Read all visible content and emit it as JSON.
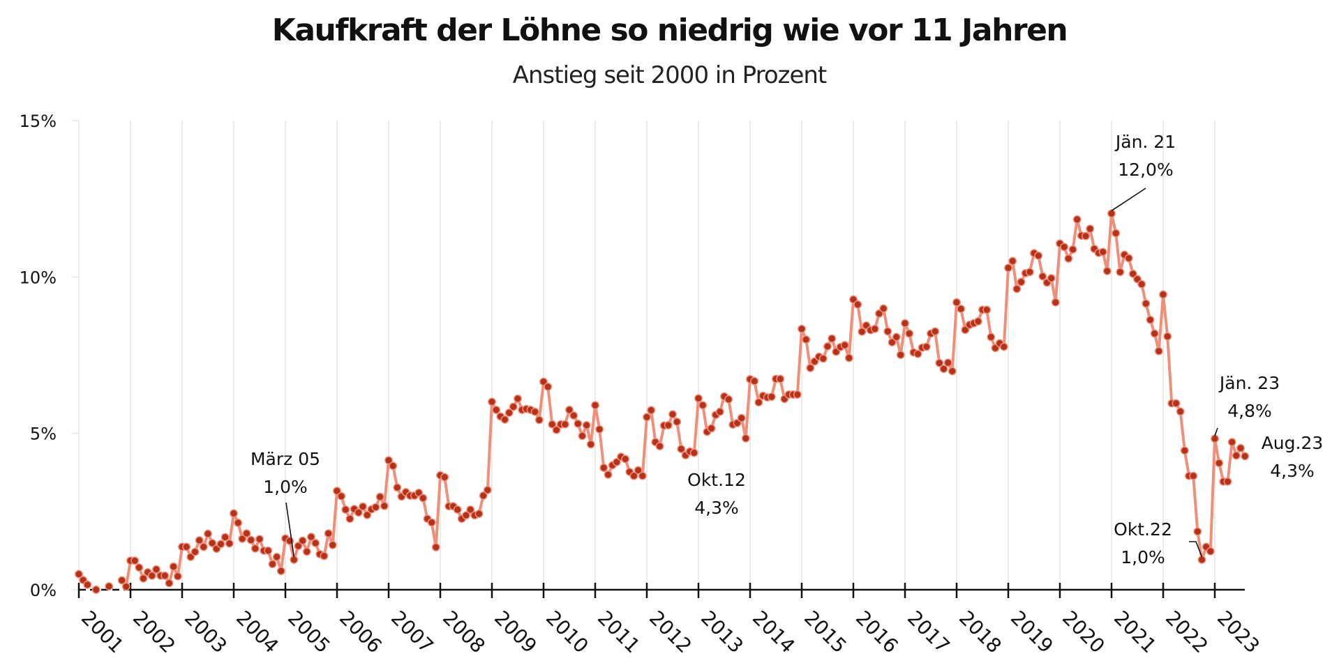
{
  "chart_data": {
    "type": "line",
    "title": "Kaufkraft der Löhne so niedrig wie vor 11 Jahren",
    "subtitle": "Anstieg seit 2000 in Prozent",
    "xlabel": "",
    "ylabel": "",
    "ylim": [
      0,
      15
    ],
    "yticks": [
      0,
      5,
      10,
      15
    ],
    "ytick_labels": [
      "0%",
      "5%",
      "10%",
      "15%"
    ],
    "xticks": [
      "2001",
      "2002",
      "2003",
      "2004",
      "2005",
      "2006",
      "2007",
      "2008",
      "2009",
      "2010",
      "2011",
      "2012",
      "2013",
      "2014",
      "2015",
      "2016",
      "2017",
      "2018",
      "2019",
      "2020",
      "2021",
      "2022",
      "2023"
    ],
    "x_start": "2001-01",
    "x_end": "2023-08",
    "frequency": "monthly",
    "grid": "vertical",
    "colors": {
      "line": "#ef8f7a",
      "marker": "#b5321a",
      "grid": "#ecebe6",
      "axis": "#111111"
    },
    "series": [
      {
        "name": "Kaufkraft der Löhne",
        "values": [
          0.5,
          0.31,
          0.16,
          null,
          0.0,
          null,
          null,
          0.11,
          null,
          null,
          0.3,
          0.1,
          0.93,
          0.93,
          0.71,
          0.36,
          0.56,
          0.45,
          0.65,
          0.45,
          0.45,
          0.21,
          0.74,
          0.43,
          1.37,
          1.37,
          1.05,
          1.21,
          1.58,
          1.37,
          1.79,
          1.49,
          1.31,
          1.46,
          1.68,
          1.48,
          2.44,
          2.14,
          1.63,
          1.8,
          1.59,
          1.32,
          1.62,
          1.25,
          1.25,
          0.82,
          1.05,
          0.6,
          1.64,
          1.56,
          0.96,
          1.4,
          1.57,
          1.22,
          1.69,
          1.49,
          1.14,
          1.08,
          1.8,
          1.43,
          3.16,
          2.99,
          2.56,
          2.27,
          2.58,
          2.47,
          2.66,
          2.39,
          2.57,
          2.64,
          2.97,
          2.68,
          4.14,
          3.96,
          3.27,
          2.98,
          3.12,
          3.01,
          3.01,
          3.1,
          2.93,
          2.27,
          2.15,
          1.36,
          3.66,
          3.6,
          2.67,
          2.67,
          2.56,
          2.27,
          2.38,
          2.56,
          2.38,
          2.43,
          3.01,
          3.19,
          6.01,
          5.75,
          5.54,
          5.44,
          5.66,
          5.85,
          6.11,
          5.75,
          5.78,
          5.75,
          5.69,
          5.43,
          6.65,
          6.49,
          5.29,
          5.11,
          5.29,
          5.29,
          5.75,
          5.57,
          5.31,
          4.92,
          5.26,
          4.65,
          5.9,
          5.13,
          3.9,
          3.68,
          3.98,
          4.08,
          4.25,
          4.18,
          3.77,
          3.64,
          3.82,
          3.64,
          5.52,
          5.74,
          4.72,
          4.59,
          5.25,
          5.26,
          5.61,
          5.37,
          4.5,
          4.3,
          4.42,
          4.38,
          6.12,
          5.9,
          5.05,
          5.16,
          5.59,
          5.69,
          6.18,
          6.09,
          5.28,
          5.33,
          5.49,
          4.84,
          6.73,
          6.67,
          5.99,
          6.2,
          6.15,
          6.17,
          6.74,
          6.74,
          6.1,
          6.24,
          6.24,
          6.24,
          8.34,
          8.0,
          7.09,
          7.3,
          7.45,
          7.39,
          7.78,
          8.03,
          7.61,
          7.76,
          7.82,
          7.41,
          9.28,
          9.12,
          8.25,
          8.45,
          8.3,
          8.34,
          8.83,
          8.99,
          8.26,
          7.91,
          8.08,
          7.51,
          8.52,
          8.19,
          7.59,
          7.54,
          7.74,
          7.77,
          8.19,
          8.26,
          7.25,
          7.06,
          7.26,
          6.99,
          9.19,
          8.98,
          8.31,
          8.47,
          8.52,
          8.58,
          8.95,
          8.95,
          8.08,
          7.73,
          7.88,
          7.77,
          10.29,
          10.51,
          9.62,
          9.84,
          10.12,
          10.16,
          10.76,
          10.68,
          10.02,
          9.82,
          9.96,
          9.19,
          11.07,
          10.96,
          10.59,
          10.88,
          11.84,
          11.32,
          11.31,
          11.54,
          10.9,
          10.77,
          10.8,
          10.19,
          12.03,
          11.4,
          10.16,
          10.71,
          10.6,
          10.1,
          9.93,
          9.77,
          9.15,
          8.63,
          8.19,
          7.63,
          9.44,
          8.1,
          5.96,
          5.96,
          5.7,
          4.45,
          3.64,
          3.64,
          1.86,
          0.96,
          1.37,
          1.23,
          4.83,
          4.05,
          3.46,
          3.46,
          4.72,
          4.29,
          4.53,
          4.27
        ]
      }
    ],
    "annotations": [
      {
        "label": "März 05",
        "value_label": "1,0%",
        "date": "2005-03",
        "value": 0.96
      },
      {
        "label": "Okt.12",
        "value_label": "4,3%",
        "date": "2012-10",
        "value": 4.3
      },
      {
        "label": "Jän. 21",
        "value_label": "12,0%",
        "date": "2021-01",
        "value": 12.03
      },
      {
        "label": "Okt.22",
        "value_label": "1,0%",
        "date": "2022-10",
        "value": 0.96
      },
      {
        "label": "Jän. 23",
        "value_label": "4,8%",
        "date": "2023-01",
        "value": 4.83
      },
      {
        "label": "Aug.23",
        "value_label": "4,3%",
        "date": "2023-08",
        "value": 4.27
      }
    ],
    "legend": "none"
  }
}
